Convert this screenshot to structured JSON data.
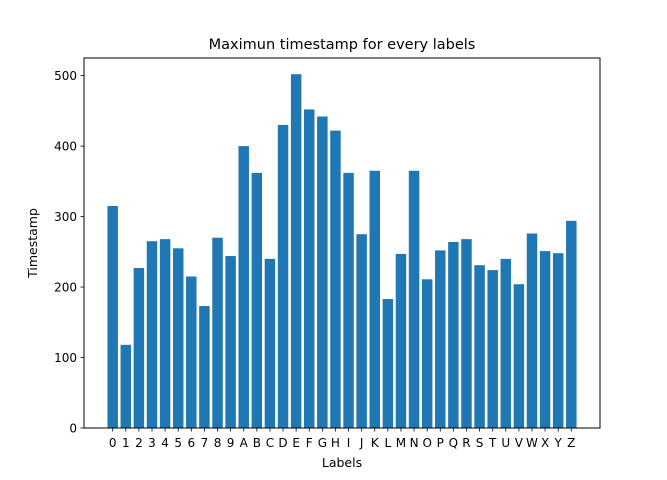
{
  "chart_data": {
    "type": "bar",
    "title": "Maximun timestamp for every labels",
    "xlabel": "Labels",
    "ylabel": "Timestamp",
    "categories": [
      "0",
      "1",
      "2",
      "3",
      "4",
      "5",
      "6",
      "7",
      "8",
      "9",
      "A",
      "B",
      "C",
      "D",
      "E",
      "F",
      "G",
      "H",
      "I",
      "J",
      "K",
      "L",
      "M",
      "N",
      "O",
      "P",
      "Q",
      "R",
      "S",
      "T",
      "U",
      "V",
      "W",
      "X",
      "Y",
      "Z"
    ],
    "values": [
      315,
      118,
      227,
      265,
      268,
      255,
      215,
      173,
      270,
      244,
      400,
      362,
      240,
      430,
      502,
      452,
      442,
      422,
      362,
      275,
      365,
      183,
      247,
      365,
      211,
      252,
      264,
      268,
      231,
      224,
      240,
      204,
      276,
      251,
      248,
      294
    ],
    "ylim": [
      0,
      525
    ],
    "yticks": [
      0,
      100,
      200,
      300,
      400,
      500
    ],
    "bar_color": "#1f77b4",
    "grid": false
  }
}
